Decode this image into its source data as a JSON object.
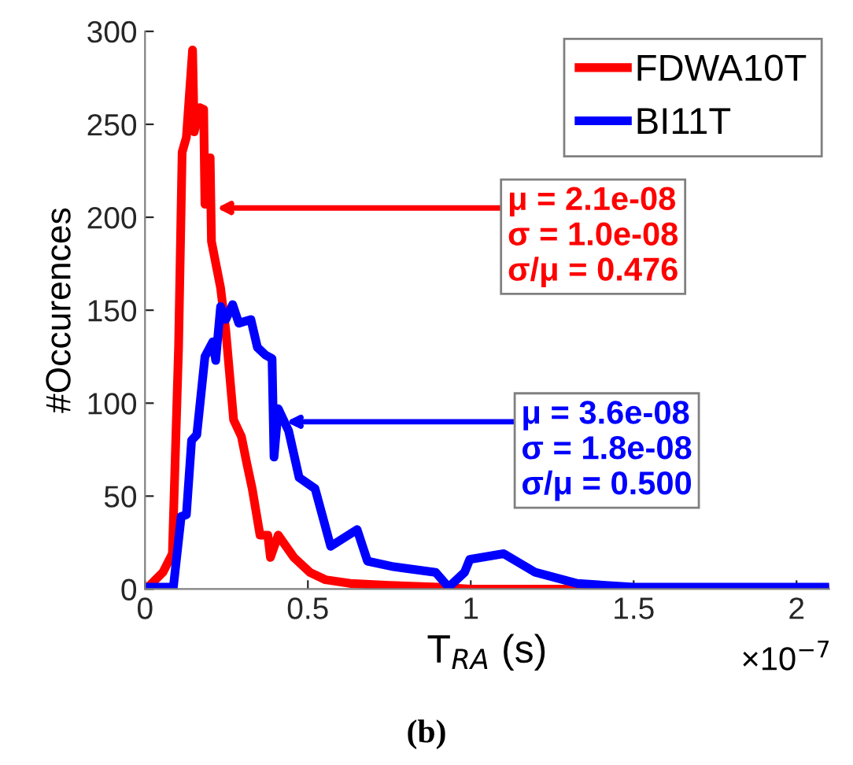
{
  "chart_data": {
    "type": "line",
    "xlabel": "T$_{RA}$ (s)",
    "ylabel": "#Occurences",
    "xlim": [
      0,
      2.1
    ],
    "xticks": [
      0,
      0.5,
      1,
      1.5,
      2
    ],
    "ylim": [
      0,
      300
    ],
    "yticks": [
      0,
      50,
      100,
      150,
      200,
      250,
      300
    ],
    "grid": false,
    "legend": "top right",
    "marker": "none",
    "line_style": "solid",
    "series": [
      {
        "name": "FDWA10T",
        "color": "#ff0000",
        "x": [
          0.015,
          0.055,
          0.084,
          0.103,
          0.114,
          0.127,
          0.146,
          0.151,
          0.168,
          0.18,
          0.184,
          0.2,
          0.204,
          0.232,
          0.248,
          0.272,
          0.296,
          0.312,
          0.329,
          0.353,
          0.377,
          0.385,
          0.409,
          0.457,
          0.506,
          0.554,
          0.63,
          0.75,
          0.9,
          1.0,
          1.5,
          2.1
        ],
        "values": [
          2,
          9,
          19,
          130,
          235,
          243,
          290,
          246,
          259,
          258,
          207,
          232,
          187,
          162,
          139,
          91,
          82,
          68,
          54,
          29,
          29,
          17,
          29,
          17,
          9,
          5,
          3,
          2,
          1,
          0,
          0,
          0
        ]
      },
      {
        "name": "BI11T",
        "color": "#0000ff",
        "x": [
          0.015,
          0.087,
          0.111,
          0.127,
          0.143,
          0.159,
          0.184,
          0.208,
          0.217,
          0.232,
          0.248,
          0.269,
          0.288,
          0.325,
          0.345,
          0.369,
          0.39,
          0.396,
          0.409,
          0.441,
          0.473,
          0.522,
          0.57,
          0.651,
          0.683,
          0.763,
          0.892,
          0.932,
          0.981,
          0.997,
          1.101,
          1.198,
          1.327,
          1.5,
          2.1
        ],
        "values": [
          1,
          1,
          39,
          40,
          80,
          83,
          125,
          133,
          123,
          152,
          145,
          153,
          143,
          145,
          130,
          126,
          124,
          71,
          97,
          85,
          60,
          54,
          23,
          32,
          15,
          12,
          9,
          1,
          9,
          16,
          19,
          9,
          3,
          1,
          1
        ]
      }
    ],
    "annotations": [
      {
        "text": "μ = 2.1e-08\nσ = 1.0e-08\nσ/μ = 0.476",
        "x": 0.22,
        "y": 205
      },
      {
        "text": "μ = 3.6e-08\nσ = 1.8e-08\nσ/μ = 0.500",
        "x": 0.433,
        "y": 90
      },
      "×10$^{−7}$",
      "(b)"
    ]
  }
}
